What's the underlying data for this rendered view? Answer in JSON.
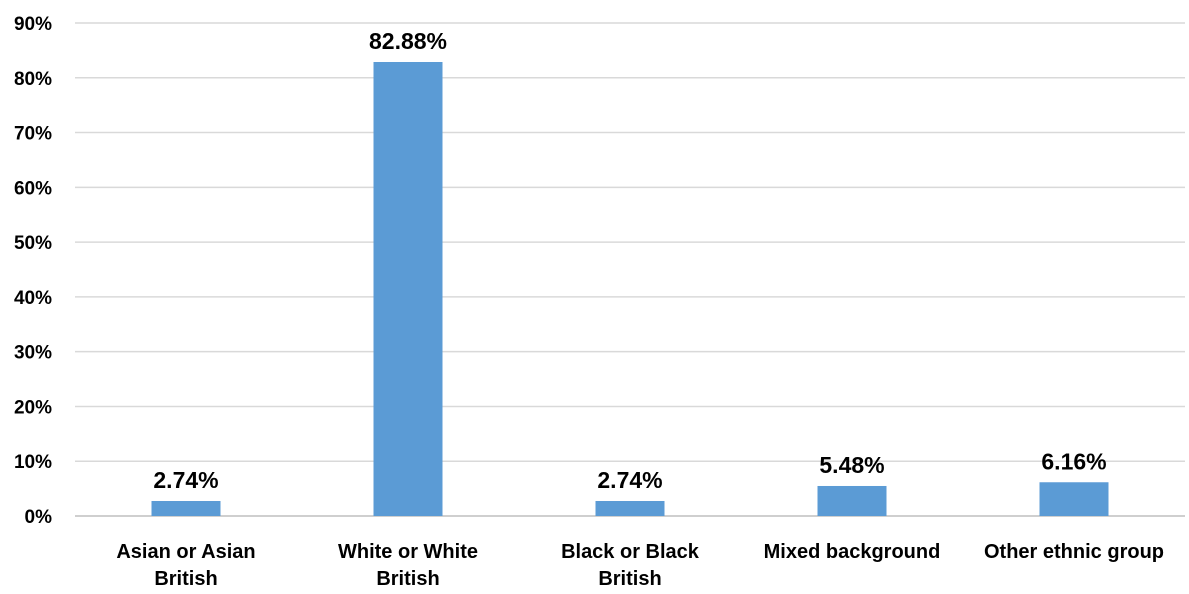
{
  "chart_data": {
    "type": "bar",
    "categories": [
      [
        "Asian or Asian",
        "British"
      ],
      [
        "White or White",
        "British"
      ],
      [
        "Black or Black",
        "British"
      ],
      [
        "Mixed background"
      ],
      [
        "Other ethnic group"
      ]
    ],
    "values": [
      2.74,
      82.88,
      2.74,
      5.48,
      6.16
    ],
    "value_labels": [
      "2.74%",
      "82.88%",
      "2.74%",
      "5.48%",
      "6.16%"
    ],
    "y_ticks": [
      "0%",
      "10%",
      "20%",
      "30%",
      "40%",
      "50%",
      "60%",
      "70%",
      "80%",
      "90%"
    ],
    "ylim": [
      0,
      90
    ],
    "grid": true,
    "legend": "none",
    "bar_color": "#5b9bd5",
    "title": "",
    "xlabel": "",
    "ylabel": ""
  }
}
